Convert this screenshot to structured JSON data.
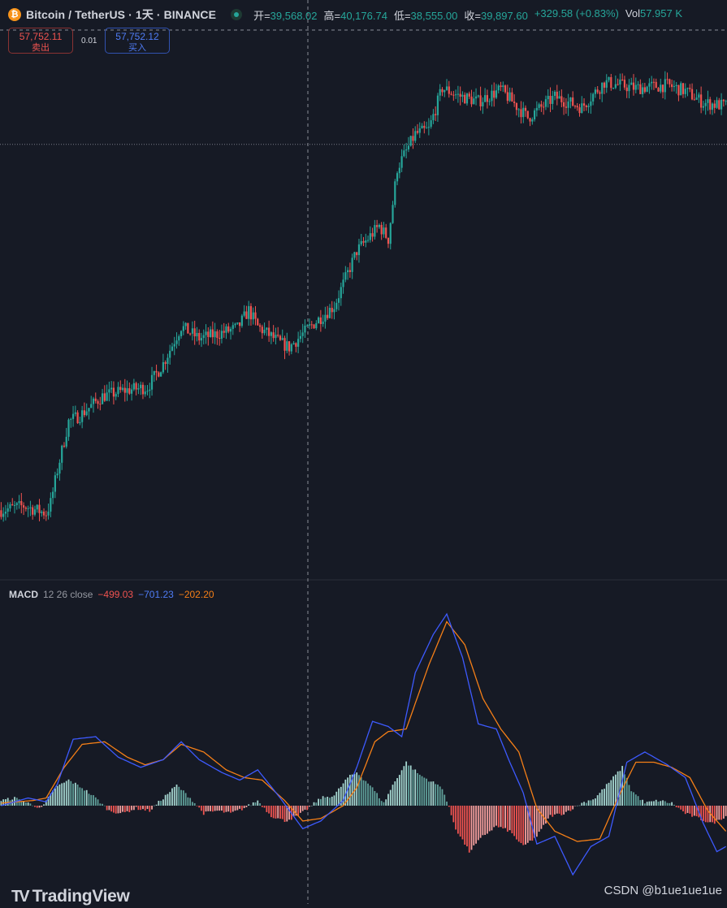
{
  "header": {
    "symbol": "Bitcoin / TetherUS · 1天 · BINANCE",
    "coin_icon": "bitcoin-icon",
    "open_label": "开=",
    "open_value": "39,568.02",
    "high_label": "高=",
    "high_value": "40,176.74",
    "low_label": "低=",
    "low_value": "38,555.00",
    "close_label": "收=",
    "close_value": "39,897.60",
    "change": "+329.58 (+0.83%)",
    "vol_label": "Vol",
    "vol_value": "57.957 K"
  },
  "trade": {
    "sell_price": "57,752.11",
    "sell_label": "卖出",
    "spread": "0.01",
    "buy_price": "57,752.12",
    "buy_label": "买入"
  },
  "macd_legend": {
    "name": "MACD",
    "params": "12 26 close",
    "histogram": "−499.03",
    "macd": "−701.23",
    "signal": "−202.20"
  },
  "footer": {
    "logo_text": "TradingView",
    "logo_mark": "TV",
    "watermark": "CSDN @b1ue1ue1ue"
  },
  "colors": {
    "background": "#161a25",
    "up": "#26a69a",
    "down": "#ef5350",
    "macd_line": "#3d5afe",
    "signal_line": "#f57f17",
    "hist_up": "#a5d6d0",
    "hist_down": "#f7a09e"
  },
  "chart_data": [
    {
      "type": "candlestick",
      "title": "Bitcoin / TetherUS · 1天 · BINANCE",
      "close_trend": [
        [
          0,
          27800
        ],
        [
          10,
          28100
        ],
        [
          20,
          27600
        ],
        [
          22,
          28300
        ],
        [
          25,
          30500
        ],
        [
          30,
          33800
        ],
        [
          35,
          34200
        ],
        [
          45,
          35500
        ],
        [
          55,
          35900
        ],
        [
          65,
          36100
        ],
        [
          72,
          37700
        ],
        [
          80,
          40200
        ],
        [
          88,
          39400
        ],
        [
          96,
          39700
        ],
        [
          105,
          40100
        ],
        [
          110,
          41300
        ],
        [
          114,
          40200
        ],
        [
          124,
          39100
        ],
        [
          128,
          38800
        ],
        [
          138,
          40300
        ],
        [
          148,
          41600
        ],
        [
          158,
          45300
        ],
        [
          168,
          47000
        ],
        [
          172,
          46100
        ],
        [
          176,
          50900
        ],
        [
          184,
          53200
        ],
        [
          190,
          53500
        ],
        [
          196,
          56300
        ],
        [
          203,
          55800
        ],
        [
          212,
          55400
        ],
        [
          222,
          56200
        ],
        [
          234,
          54300
        ],
        [
          246,
          55700
        ],
        [
          258,
          55000
        ],
        [
          268,
          56700
        ],
        [
          282,
          56300
        ],
        [
          296,
          56500
        ],
        [
          304,
          56100
        ],
        [
          312,
          55300
        ],
        [
          322,
          55100
        ]
      ],
      "horizontal_line": 52500
    },
    {
      "type": "line",
      "title": "MACD 12 26 close",
      "series": [
        {
          "name": "MACD",
          "points": [
            [
              0,
              0
            ],
            [
              12,
              300
            ],
            [
              20,
              150
            ],
            [
              25,
              850
            ],
            [
              32,
              2600
            ],
            [
              42,
              2700
            ],
            [
              52,
              1900
            ],
            [
              62,
              1500
            ],
            [
              72,
              1800
            ],
            [
              80,
              2500
            ],
            [
              88,
              1800
            ],
            [
              98,
              1300
            ],
            [
              106,
              1000
            ],
            [
              114,
              1400
            ],
            [
              124,
              300
            ],
            [
              134,
              -900
            ],
            [
              142,
              -600
            ],
            [
              152,
              200
            ],
            [
              158,
              1500
            ],
            [
              165,
              3300
            ],
            [
              172,
              3100
            ],
            [
              178,
              2700
            ],
            [
              184,
              5200
            ],
            [
              192,
              6700
            ],
            [
              198,
              7500
            ],
            [
              205,
              5800
            ],
            [
              212,
              3200
            ],
            [
              220,
              3000
            ],
            [
              226,
              1700
            ],
            [
              232,
              500
            ],
            [
              238,
              -1500
            ],
            [
              246,
              -1200
            ],
            [
              254,
              -2700
            ],
            [
              262,
              -1600
            ],
            [
              270,
              -1200
            ],
            [
              278,
              1700
            ],
            [
              286,
              2100
            ],
            [
              296,
              1600
            ],
            [
              304,
              1100
            ],
            [
              312,
              -700
            ],
            [
              318,
              -1800
            ],
            [
              322,
              -1600
            ]
          ]
        },
        {
          "name": "Signal",
          "points": [
            [
              0,
              100
            ],
            [
              14,
              200
            ],
            [
              20,
              300
            ],
            [
              28,
              1500
            ],
            [
              36,
              2400
            ],
            [
              46,
              2500
            ],
            [
              56,
              1900
            ],
            [
              64,
              1600
            ],
            [
              72,
              1800
            ],
            [
              80,
              2400
            ],
            [
              90,
              2100
            ],
            [
              100,
              1400
            ],
            [
              108,
              1100
            ],
            [
              116,
              1000
            ],
            [
              126,
              200
            ],
            [
              134,
              -600
            ],
            [
              142,
              -500
            ],
            [
              152,
              0
            ],
            [
              158,
              700
            ],
            [
              166,
              2500
            ],
            [
              172,
              2900
            ],
            [
              180,
              3000
            ],
            [
              190,
              5500
            ],
            [
              198,
              7200
            ],
            [
              206,
              6300
            ],
            [
              214,
              4200
            ],
            [
              222,
              3000
            ],
            [
              230,
              2100
            ],
            [
              238,
              -100
            ],
            [
              246,
              -1000
            ],
            [
              256,
              -1400
            ],
            [
              266,
              -1300
            ],
            [
              274,
              300
            ],
            [
              282,
              1700
            ],
            [
              290,
              1700
            ],
            [
              298,
              1500
            ],
            [
              306,
              1100
            ],
            [
              314,
              -200
            ],
            [
              322,
              -1000
            ]
          ]
        },
        {
          "name": "Histogram",
          "points": [
            [
              0,
              200
            ],
            [
              6,
              300
            ],
            [
              12,
              100
            ],
            [
              18,
              -100
            ],
            [
              24,
              700
            ],
            [
              30,
              1000
            ],
            [
              36,
              700
            ],
            [
              42,
              300
            ],
            [
              48,
              -200
            ],
            [
              54,
              -300
            ],
            [
              60,
              -100
            ],
            [
              66,
              -200
            ],
            [
              72,
              300
            ],
            [
              78,
              800
            ],
            [
              84,
              300
            ],
            [
              90,
              -300
            ],
            [
              96,
              -200
            ],
            [
              102,
              -300
            ],
            [
              108,
              -100
            ],
            [
              114,
              200
            ],
            [
              120,
              -400
            ],
            [
              126,
              -600
            ],
            [
              132,
              -400
            ],
            [
              138,
              0
            ],
            [
              142,
              300
            ],
            [
              148,
              400
            ],
            [
              154,
              1100
            ],
            [
              158,
              1300
            ],
            [
              164,
              800
            ],
            [
              170,
              100
            ],
            [
              174,
              800
            ],
            [
              180,
              1700
            ],
            [
              186,
              1200
            ],
            [
              190,
              1000
            ],
            [
              196,
              700
            ],
            [
              202,
              -900
            ],
            [
              208,
              -1800
            ],
            [
              214,
              -1200
            ],
            [
              220,
              -800
            ],
            [
              226,
              -1000
            ],
            [
              232,
              -1600
            ],
            [
              238,
              -1200
            ],
            [
              244,
              -400
            ],
            [
              250,
              -300
            ],
            [
              258,
              100
            ],
            [
              264,
              300
            ],
            [
              270,
              900
            ],
            [
              276,
              1500
            ],
            [
              280,
              600
            ],
            [
              286,
              100
            ],
            [
              292,
              200
            ],
            [
              298,
              100
            ],
            [
              304,
              -300
            ],
            [
              310,
              -500
            ],
            [
              316,
              -700
            ],
            [
              322,
              -400
            ]
          ]
        }
      ]
    }
  ]
}
